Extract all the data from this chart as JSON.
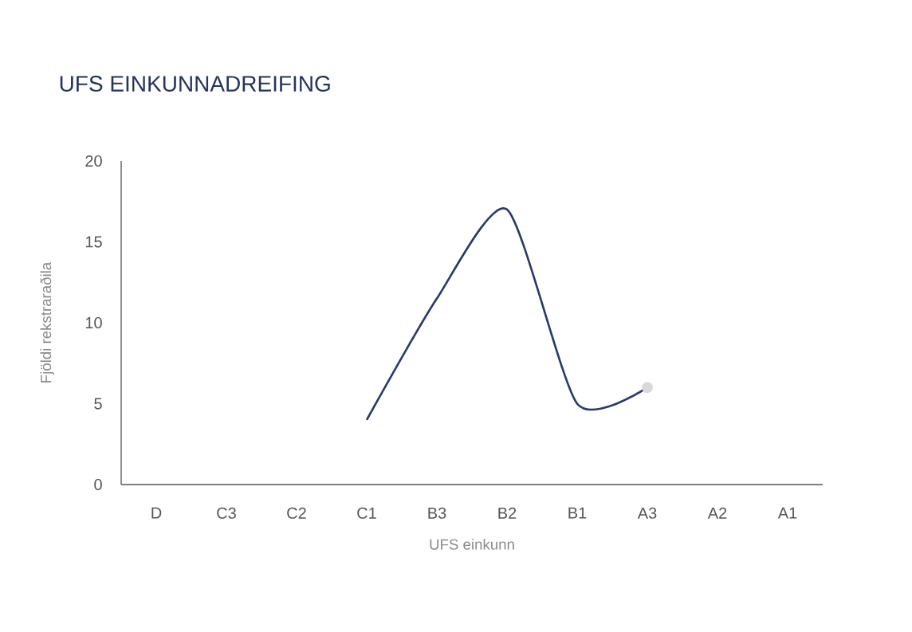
{
  "chart_data": {
    "type": "line",
    "title": "UFS EINKUNNADREIFING",
    "xlabel": "UFS einkunn",
    "ylabel": "Fjöldi rekstraraðila",
    "categories": [
      "D",
      "C3",
      "C2",
      "C1",
      "B3",
      "B2",
      "B1",
      "A3",
      "A2",
      "A1"
    ],
    "series": [
      {
        "color": "#2a3a6b",
        "values": [
          null,
          null,
          null,
          4,
          11.5,
          17,
          5,
          6,
          null,
          null
        ]
      },
      {
        "type": "scatter",
        "color": "#d9d9d9",
        "values": [
          null,
          null,
          null,
          null,
          null,
          null,
          null,
          6,
          null,
          null
        ]
      }
    ],
    "ylim": [
      0,
      20
    ],
    "yticks": [
      0,
      5,
      10,
      15,
      20
    ]
  }
}
